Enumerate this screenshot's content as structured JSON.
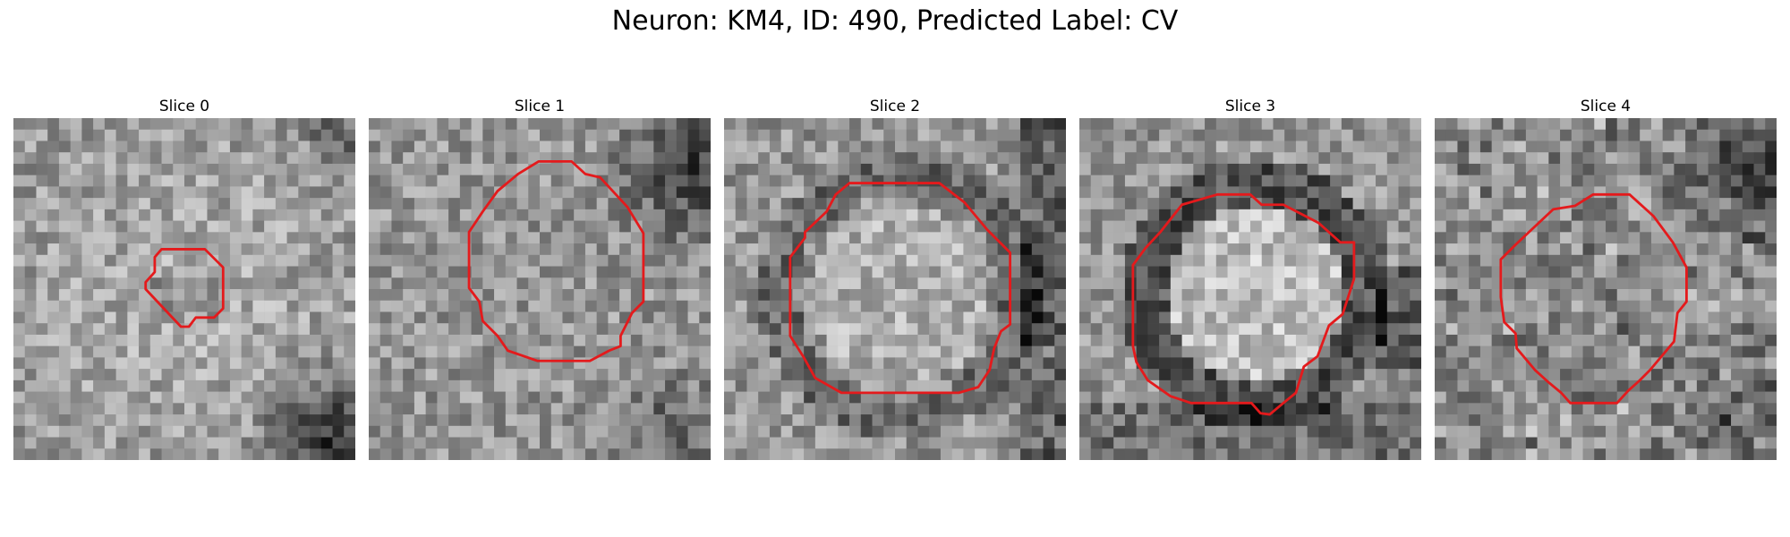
{
  "figure": {
    "title": "Neuron: KM4, ID: 490, Predicted Label: CV"
  },
  "overlay_color": "#e41a1c",
  "slices": [
    {
      "label": "Slice 0",
      "image": "grayscale-microscopy-slice",
      "seed": 11,
      "dark_corner": "bottom-right",
      "contour": "small-octagon"
    },
    {
      "label": "Slice 1",
      "image": "grayscale-microscopy-slice",
      "seed": 23,
      "dark_corner": "top-right",
      "contour": "large-octagon"
    },
    {
      "label": "Slice 2",
      "image": "grayscale-microscopy-slice",
      "seed": 37,
      "dark_corner": "right-edge",
      "contour": "large-octagon"
    },
    {
      "label": "Slice 3",
      "image": "grayscale-microscopy-slice",
      "seed": 53,
      "dark_corner": "ring",
      "contour": "large-octagon"
    },
    {
      "label": "Slice 4",
      "image": "grayscale-microscopy-slice",
      "seed": 71,
      "dark_corner": "top-right",
      "contour": "large-octagon"
    }
  ]
}
